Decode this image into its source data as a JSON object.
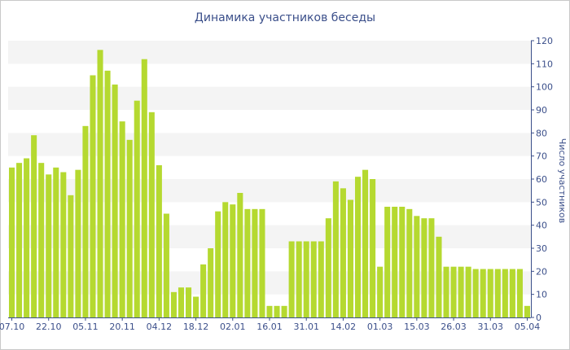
{
  "chart_data": {
    "type": "bar",
    "title": "Динамика участников беседы",
    "ylabel": "Число участников",
    "ylim": [
      0,
      120
    ],
    "yticks": [
      0,
      10,
      20,
      30,
      40,
      50,
      60,
      70,
      80,
      90,
      100,
      110,
      120
    ],
    "grid": "horizontal bands",
    "bar_color": "#b5d930",
    "band_color": "#f4f4f4",
    "axis_color": "#3b4f8a",
    "x_tick_labels": [
      {
        "label": "07.10",
        "index": 0
      },
      {
        "label": "22.10",
        "index": 5
      },
      {
        "label": "05.11",
        "index": 10
      },
      {
        "label": "20.11",
        "index": 15
      },
      {
        "label": "04.12",
        "index": 20
      },
      {
        "label": "18.12",
        "index": 25
      },
      {
        "label": "02.01",
        "index": 30
      },
      {
        "label": "16.01",
        "index": 35
      },
      {
        "label": "31.01",
        "index": 40
      },
      {
        "label": "14.02",
        "index": 45
      },
      {
        "label": "01.03",
        "index": 50
      },
      {
        "label": "15.03",
        "index": 55
      },
      {
        "label": "26.03",
        "index": 60
      },
      {
        "label": "31.03",
        "index": 65
      },
      {
        "label": "05.04",
        "index": 70
      }
    ],
    "values": [
      65,
      67,
      69,
      79,
      67,
      62,
      65,
      63,
      53,
      64,
      83,
      105,
      116,
      107,
      101,
      85,
      77,
      94,
      112,
      89,
      66,
      45,
      11,
      13,
      13,
      9,
      23,
      30,
      46,
      50,
      49,
      54,
      47,
      47,
      47,
      5,
      5,
      5,
      33,
      33,
      33,
      33,
      33,
      43,
      59,
      56,
      51,
      61,
      64,
      60,
      22,
      48,
      48,
      48,
      47,
      44,
      43,
      43,
      35,
      22,
      22,
      22,
      22,
      21,
      21,
      21,
      21,
      21,
      21,
      21,
      5
    ]
  }
}
